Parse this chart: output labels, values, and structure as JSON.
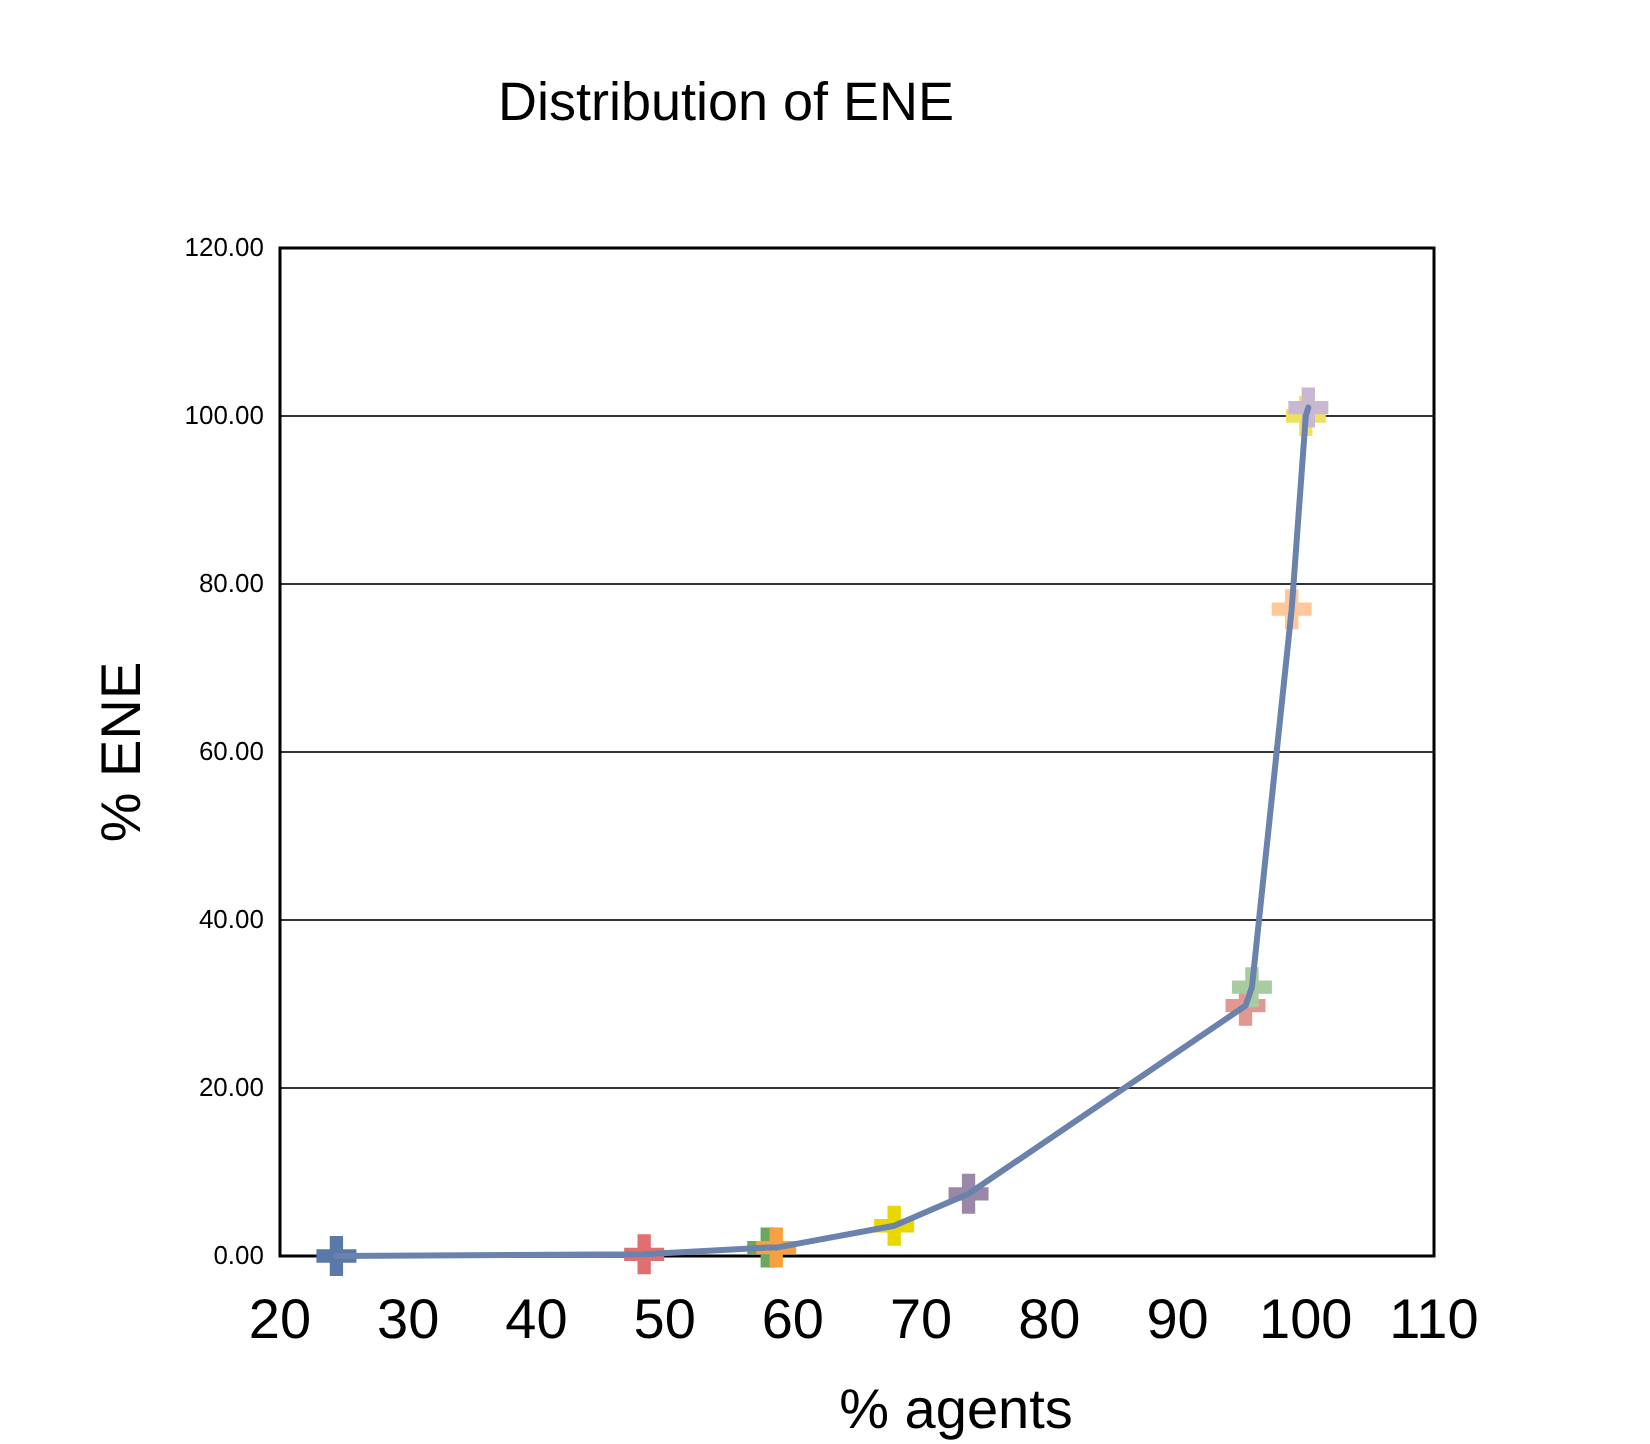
{
  "chart_data": {
    "type": "line",
    "title": "Distribution of ENE",
    "xlabel": "% agents",
    "ylabel": "% ENE",
    "x": [
      24.4,
      48.4,
      58,
      58.7,
      67.9,
      73.7,
      95.3,
      95.8,
      98.9,
      100,
      100.2
    ],
    "series": [
      {
        "color": "#6a82ac",
        "values": [
          0,
          0.2,
          1,
          1,
          3.6,
          7.4,
          29.8,
          32,
          77,
          100,
          101
        ],
        "colors": [
          "#5a78a8",
          "#e07070",
          "#6aa860",
          "#f6a040",
          "#e8d800",
          "#9a88a8",
          "#e09890",
          "#a8cca0",
          "#ffc898",
          "#f0e060",
          "#c8b8d0"
        ]
      }
    ],
    "xlim": [
      20,
      110
    ],
    "xticks": [
      20,
      30,
      40,
      50,
      60,
      70,
      80,
      90,
      100,
      110
    ],
    "ylim": [
      0,
      120
    ],
    "yticks": [
      {
        "value": 0,
        "label": "0.00"
      },
      {
        "value": 20,
        "label": "20.00"
      },
      {
        "value": 40,
        "label": "40.00"
      },
      {
        "value": 60,
        "label": "60.00"
      },
      {
        "value": 80,
        "label": "80.00"
      },
      {
        "value": 100,
        "label": "100.00"
      },
      {
        "value": 120,
        "label": "120.00"
      }
    ],
    "grid": "y",
    "marker": "cross",
    "line_style": "solid"
  }
}
